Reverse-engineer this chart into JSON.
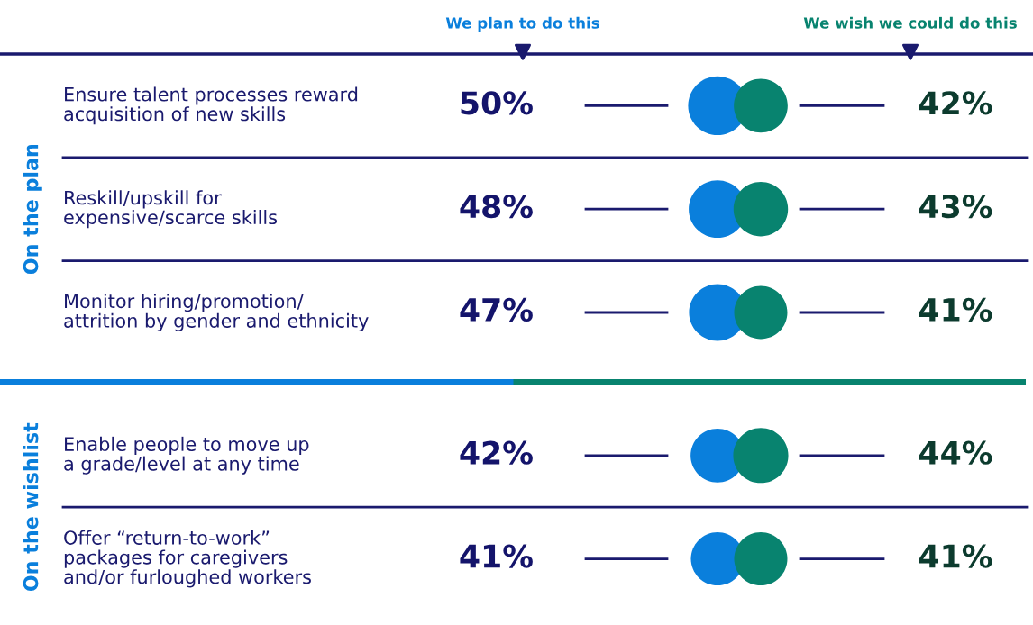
{
  "chart_data": [
    {
      "type": "other",
      "ylabel": "On the plan",
      "categories": [
        "Ensure talent processes reward\nacquisition of new skills",
        "Reskill/upskill for\nexpensive/scarce skills",
        "Monitor hiring/promotion/\nattrition by gender and ethnicity"
      ],
      "series": [
        {
          "name": "We plan to do this",
          "color": "#0a7fdc",
          "values": [
            50,
            48,
            47
          ],
          "value_labels": [
            "50%",
            "48%",
            "47%"
          ]
        },
        {
          "name": "We wish we could do this",
          "color": "#08836f",
          "values": [
            42,
            43,
            41
          ],
          "value_labels": [
            "42%",
            "43%",
            "41%"
          ]
        }
      ],
      "data_labels": true
    },
    {
      "type": "other",
      "ylabel": "On the wishlist",
      "categories": [
        "Enable people to move up\na grade/level at any time",
        "Offer “return-to-work”\npackages for caregivers\nand/or furloughed workers"
      ],
      "series": [
        {
          "color": "#0a7fdc",
          "values": [
            42,
            41
          ],
          "value_labels": [
            "42%",
            "41%"
          ]
        },
        {
          "color": "#08836f",
          "values": [
            44,
            41
          ],
          "value_labels": [
            "44%",
            "41%"
          ]
        }
      ],
      "data_labels": true
    }
  ]
}
